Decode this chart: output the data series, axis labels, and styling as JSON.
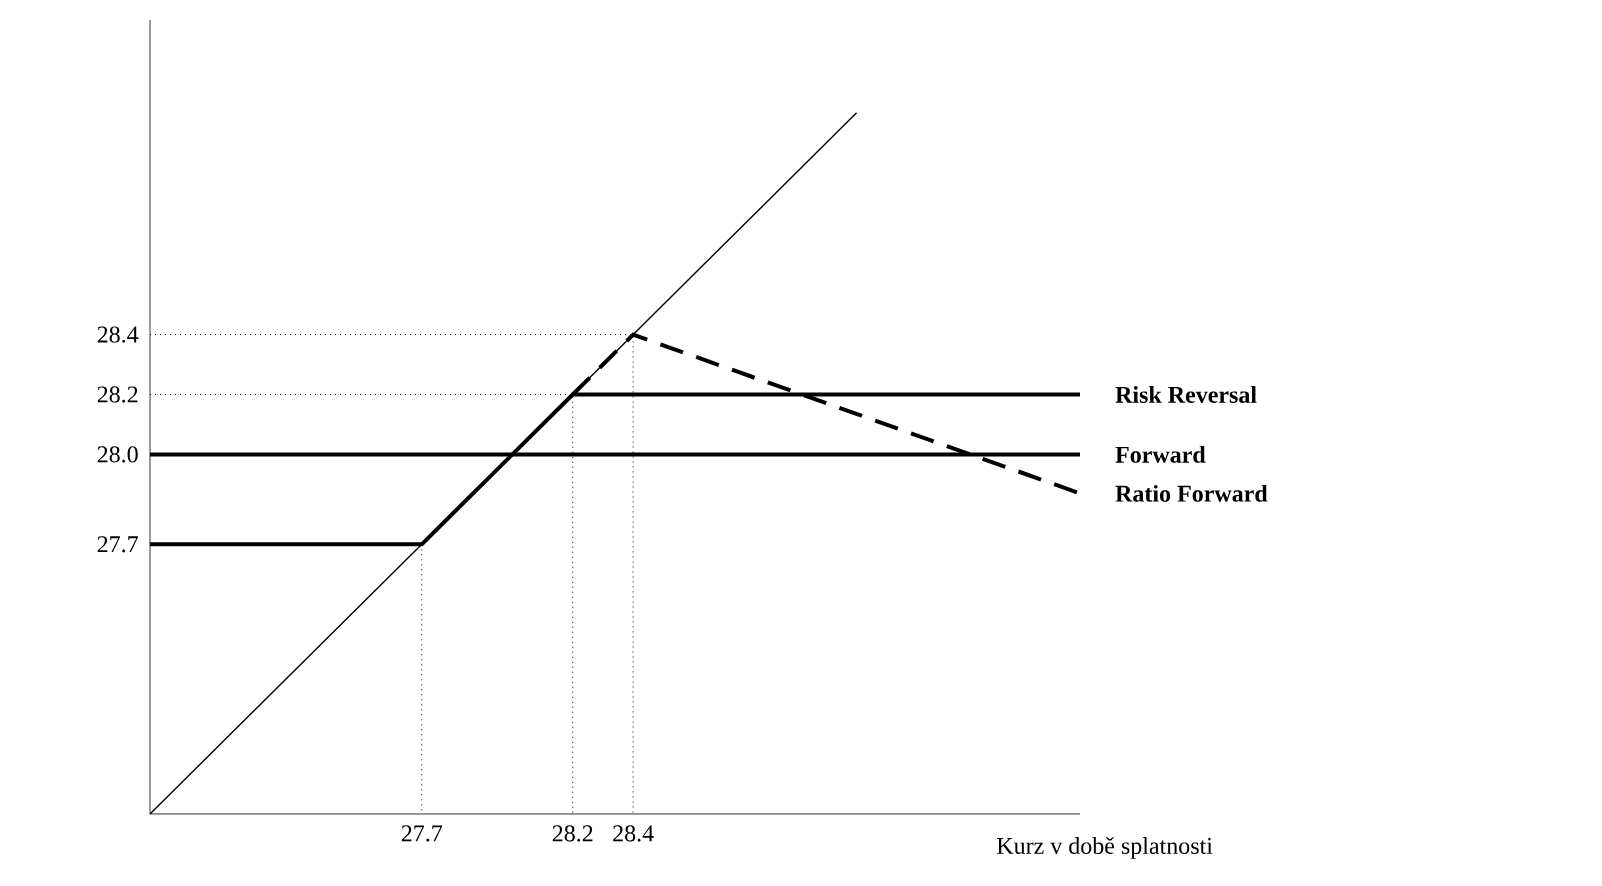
{
  "chart_data": {
    "type": "line",
    "xlabel": "Kurz v době splatnosti",
    "xlim": [
      26.8,
      29.88
    ],
    "ylim": [
      26.8,
      29.45
    ],
    "xticks": [
      27.7,
      28.2,
      28.4
    ],
    "yticks": [
      27.7,
      {
        "value": 28.0,
        "label": "28.0"
      },
      28.2,
      28.4
    ],
    "grid": false,
    "marker": "none",
    "series": [
      {
        "x": [
          26.8,
          29.14
        ],
        "values": [
          26.8,
          29.14
        ],
        "color": "#000000",
        "line_style": "solid"
      },
      {
        "x": [
          26.8,
          28.4,
          28.4
        ],
        "values": [
          28.4,
          28.4,
          26.8
        ],
        "color": "#000000",
        "line_style": "dotted"
      },
      {
        "x": [
          26.8,
          28.2,
          28.2
        ],
        "values": [
          28.2,
          28.2,
          26.8
        ],
        "color": "#000000",
        "line_style": "dotted"
      },
      {
        "x": [
          27.7,
          27.7
        ],
        "values": [
          27.7,
          26.8
        ],
        "color": "#000000",
        "line_style": "dotted"
      },
      {
        "name": "Risk Reversal",
        "x": [
          26.8,
          27.7,
          28.2,
          29.88
        ],
        "values": [
          27.7,
          27.7,
          28.2,
          28.2
        ],
        "color": "#000000",
        "line_style": "solid"
      },
      {
        "name": "Forward",
        "x": [
          26.8,
          29.88
        ],
        "values": [
          28.0,
          28.0
        ],
        "color": "#000000",
        "line_style": "solid"
      },
      {
        "name": "Ratio Forward",
        "x": [
          28.2,
          28.4,
          29.88
        ],
        "values": [
          28.2,
          28.4,
          27.87
        ],
        "color": "#000000",
        "line_style": "dashed"
      }
    ]
  }
}
